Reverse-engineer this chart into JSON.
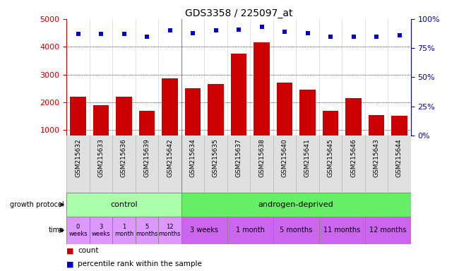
{
  "title": "GDS3358 / 225097_at",
  "samples": [
    "GSM215632",
    "GSM215633",
    "GSM215636",
    "GSM215639",
    "GSM215642",
    "GSM215634",
    "GSM215635",
    "GSM215637",
    "GSM215638",
    "GSM215640",
    "GSM215641",
    "GSM215645",
    "GSM215646",
    "GSM215643",
    "GSM215644"
  ],
  "counts": [
    2200,
    1900,
    2200,
    1700,
    2850,
    2500,
    2650,
    3750,
    4150,
    2700,
    2450,
    1700,
    2150,
    1550,
    1500
  ],
  "percentile": [
    87,
    87,
    87,
    85,
    90,
    88,
    90,
    91,
    93,
    89,
    88,
    85,
    85,
    85,
    86
  ],
  "bar_color": "#cc0000",
  "dot_color": "#0000cc",
  "ylim_left": [
    800,
    5000
  ],
  "yticks_left": [
    1000,
    2000,
    3000,
    4000,
    5000
  ],
  "ylim_right": [
    0,
    100
  ],
  "yticks_right": [
    0,
    25,
    50,
    75,
    100
  ],
  "tick_color_left": "#cc0000",
  "tick_color_right": "#0000cc",
  "control_samples": 5,
  "androgen_samples": 10,
  "control_color": "#aaffaa",
  "androgen_color": "#66ee66",
  "time_control": [
    "0\nweeks",
    "3\nweeks",
    "1\nmonth",
    "5\nmonths",
    "12\nmonths"
  ],
  "time_androgen": [
    "3 weeks",
    "1 month",
    "5 months",
    "11 months",
    "12 months"
  ],
  "time_control_color": "#dd99ff",
  "time_androgen_color": "#cc66ee",
  "andr_group_sizes": [
    2,
    2,
    2,
    2,
    2
  ],
  "background_color": "#ffffff"
}
